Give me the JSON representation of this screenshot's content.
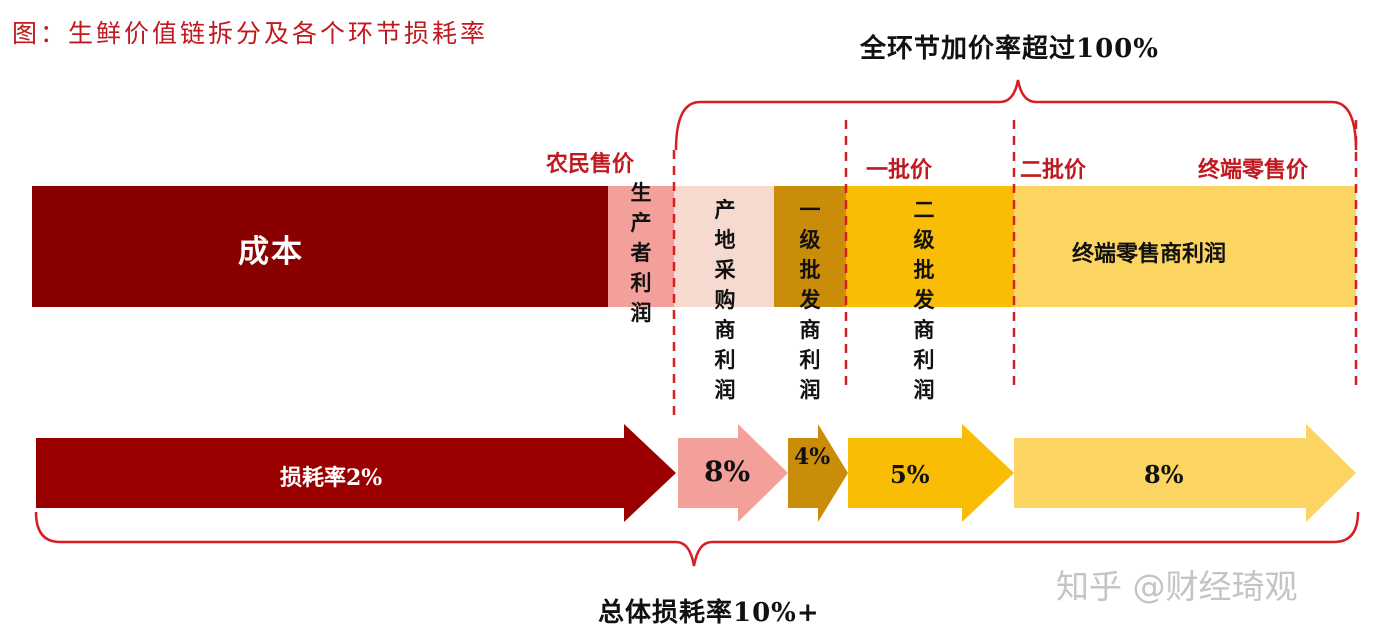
{
  "title": "图：生鲜价值链拆分及各个环节损耗率",
  "top_brace_note": "全环节加价率超过100%",
  "bottom_brace_note": "总体损耗率10%+",
  "price_labels": {
    "farmer": "农民售价",
    "first_wholesale": "一批价",
    "second_wholesale": "二批价",
    "retail": "终端零售价"
  },
  "segments": {
    "cost": "成本",
    "producer_profit": "生产者利润",
    "origin_purchaser_profit": "产地采购商利润",
    "first_wholesaler_profit": "一级批发商利润",
    "second_wholesaler_profit": "二级批发商利润",
    "retailer_profit": "终端零售商利润"
  },
  "loss_rates": {
    "cost": "损耗率2%",
    "origin": "8%",
    "first_wholesale": "4%",
    "second_wholesale": "5%",
    "retail": "8%"
  },
  "colors": {
    "dark_red": "#890000",
    "arrow_red": "#9b0000",
    "pink": "#f3a09a",
    "light_pink": "#f6d9cf",
    "ochre": "#c98d0a",
    "yellow": "#f9bd05",
    "pale_yellow": "#fbd461",
    "red_line": "#d81e23"
  },
  "watermark": "知乎 @财经琦观"
}
